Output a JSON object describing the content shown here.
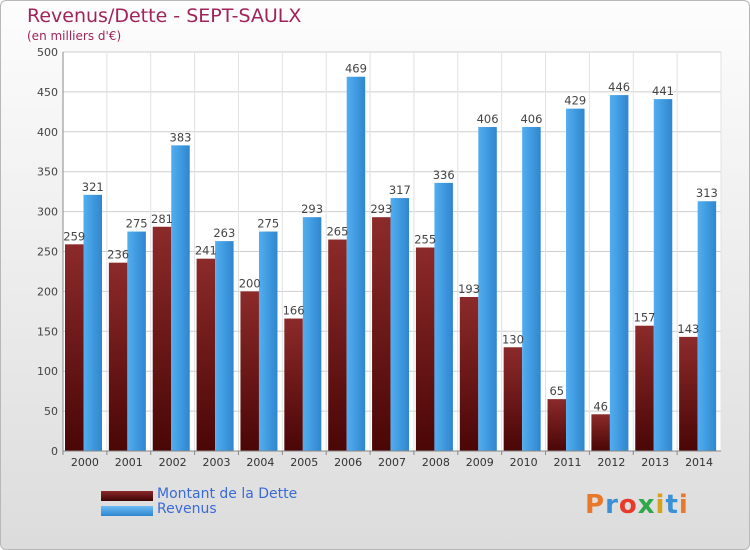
{
  "chart_data": {
    "type": "bar",
    "title": "Revenus/Dette - SEPT-SAULX",
    "subtitle": "(en milliers d'€)",
    "categories": [
      "2000",
      "2001",
      "2002",
      "2003",
      "2004",
      "2005",
      "2006",
      "2007",
      "2008",
      "2009",
      "2010",
      "2011",
      "2012",
      "2013",
      "2014"
    ],
    "series": [
      {
        "name": "Montant de la Dette",
        "color": "#7a1818",
        "values": [
          259,
          236,
          281,
          241,
          200,
          166,
          265,
          293,
          255,
          193,
          130,
          65,
          46,
          157,
          143
        ]
      },
      {
        "name": "Revenus",
        "color": "#3f9ae0",
        "values": [
          321,
          275,
          383,
          263,
          275,
          293,
          469,
          317,
          336,
          406,
          406,
          429,
          446,
          441,
          313
        ]
      }
    ],
    "ylim": [
      0,
      500
    ],
    "yticks": [
      0,
      50,
      100,
      150,
      200,
      250,
      300,
      350,
      400,
      450,
      500
    ],
    "grid": true,
    "legend_position": "bottom-left"
  },
  "legend": {
    "debt_label": "Montant de la Dette",
    "revenue_label": "Revenus"
  },
  "logo": {
    "text": "Proxiti",
    "colors": [
      "#e8792a",
      "#3b8fd6",
      "#e83a2a",
      "#2ea84a",
      "#d6a21e",
      "#3b8fd6",
      "#e8792a"
    ]
  }
}
